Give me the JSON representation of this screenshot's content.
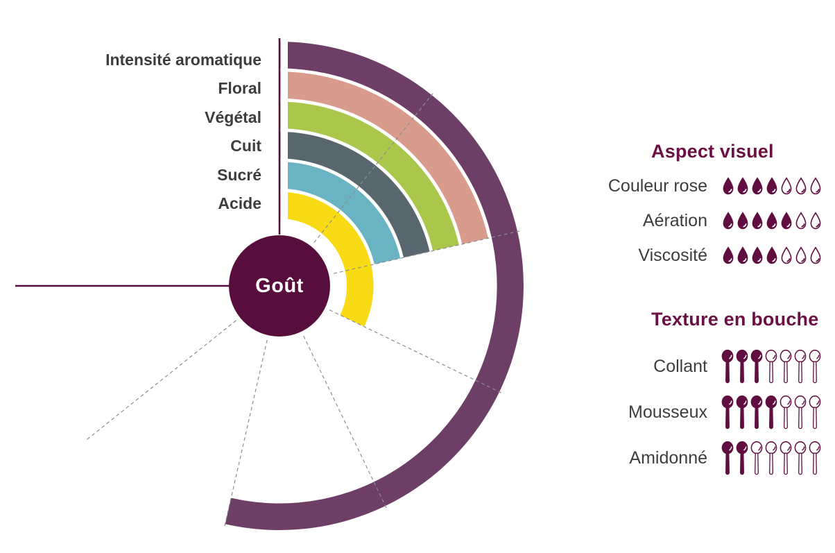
{
  "chart_data": [
    {
      "type": "bar",
      "variant": "radial-rings",
      "center_label": "Goût",
      "categories": [
        "Intensité aromatique",
        "Floral",
        "Végétal",
        "Cuit",
        "Sucré",
        "Acide"
      ],
      "values": [
        5,
        2,
        2,
        2,
        2,
        3
      ],
      "scale_min": 0,
      "scale_max": 7,
      "full_angle_deg": 270,
      "direction": "clockwise-from-top",
      "ring_order": "outermost-to-innermost",
      "colors": [
        "#6d3f66",
        "#d99b8c",
        "#a8c74b",
        "#58676d",
        "#69b3c2",
        "#f8db14"
      ],
      "gridlines": "dashed radial tick every 1 unit (38.57°); solid line at 0 and at max (270°)"
    },
    {
      "type": "bar",
      "variant": "icon-rating",
      "title": "Aspect visuel",
      "icon": "droplet",
      "categories": [
        "Couleur rose",
        "Aération",
        "Viscosité"
      ],
      "values": [
        4,
        5,
        4
      ],
      "scale_max": 7
    },
    {
      "type": "bar",
      "variant": "icon-rating",
      "title": "Texture en bouche",
      "icon": "spoon",
      "categories": [
        "Collant",
        "Mousseux",
        "Amidonné"
      ],
      "values": [
        3,
        4,
        2
      ],
      "scale_max": 7
    }
  ],
  "colors": {
    "deep_plum": "#570e3c",
    "heading": "#6b1045",
    "icon": "#5f0e3f",
    "label_text": "#3d3d3d",
    "grid_dash": "#8d8d8d",
    "background": "#ffffff"
  }
}
